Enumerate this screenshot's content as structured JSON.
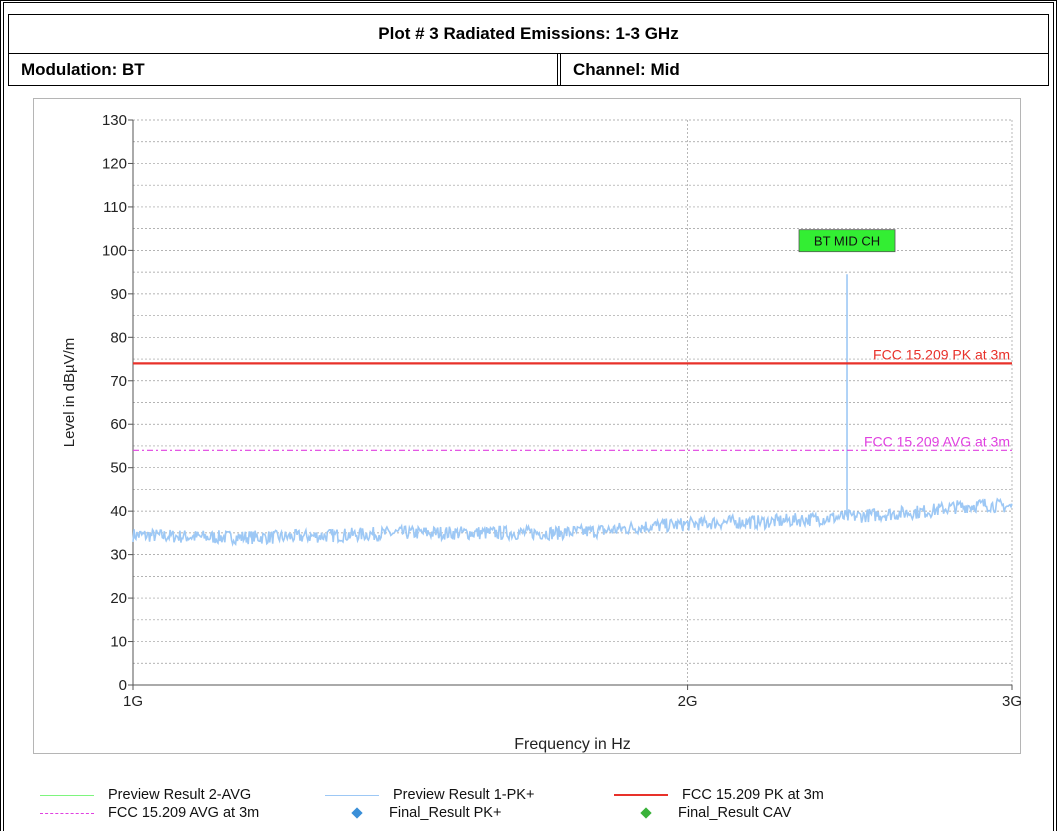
{
  "header": {
    "title": "Plot # 3 Radiated Emissions: 1-3 GHz",
    "modulation": "Modulation: BT",
    "channel": "Channel: Mid"
  },
  "chart_data": {
    "type": "line",
    "xlabel": "Frequency in Hz",
    "ylabel": "Level in dBµV/m",
    "x_scale": "log",
    "xlim_hz": [
      1000000000,
      3000000000
    ],
    "ylim": [
      0,
      130
    ],
    "y_ticks": [
      0,
      10,
      20,
      30,
      40,
      50,
      60,
      70,
      80,
      90,
      100,
      110,
      120,
      130
    ],
    "x_tick_labels": [
      {
        "value": 1000000000,
        "label": "1G"
      },
      {
        "value": 2000000000,
        "label": "2G"
      },
      {
        "value": 3000000000,
        "label": "3G"
      }
    ],
    "grid": true,
    "limit_lines": [
      {
        "name": "FCC 15.209 PK at 3m",
        "value": 74,
        "color": "#e8312a"
      },
      {
        "name": "FCC 15.209 AVG at 3m",
        "value": 54,
        "color": "#e040e0"
      }
    ],
    "series": [
      {
        "name": "Preview Result 1-PK+",
        "color": "#9dc8f5",
        "points": [
          [
            1000000000,
            34.5
          ],
          [
            1100000000,
            34
          ],
          [
            1200000000,
            34
          ],
          [
            1300000000,
            34.5
          ],
          [
            1400000000,
            35
          ],
          [
            1500000000,
            35
          ],
          [
            1600000000,
            35
          ],
          [
            1700000000,
            35
          ],
          [
            1800000000,
            35.5
          ],
          [
            1900000000,
            36.5
          ],
          [
            2000000000,
            37
          ],
          [
            2100000000,
            37.5
          ],
          [
            2200000000,
            37.5
          ],
          [
            2300000000,
            38
          ],
          [
            2400000000,
            38.5
          ],
          [
            2441000000,
            94.5
          ],
          [
            2500000000,
            39
          ],
          [
            2600000000,
            39.5
          ],
          [
            2700000000,
            40
          ],
          [
            2800000000,
            41
          ],
          [
            2900000000,
            41.5
          ],
          [
            3000000000,
            41
          ]
        ]
      }
    ],
    "annotations": [
      {
        "text": "BT MID CH",
        "x": 2441000000,
        "y": 102,
        "background": "#33ee33"
      }
    ]
  },
  "legend": [
    {
      "label": "Preview Result 2-AVG",
      "color": "#7ef57e",
      "marker": "line"
    },
    {
      "label": "Preview Result 1-PK+",
      "color": "#9dc8f5",
      "marker": "line"
    },
    {
      "label": "FCC 15.209 PK at 3m",
      "color": "#e8312a",
      "marker": "line"
    },
    {
      "label": "FCC 15.209 AVG at 3m",
      "color": "#e040e0",
      "marker": "dashed-line"
    },
    {
      "label": "Final_Result PK+",
      "color": "#3a8fd8",
      "marker": "diamond"
    },
    {
      "label": "Final_Result CAV",
      "color": "#3ab23a",
      "marker": "diamond"
    }
  ]
}
